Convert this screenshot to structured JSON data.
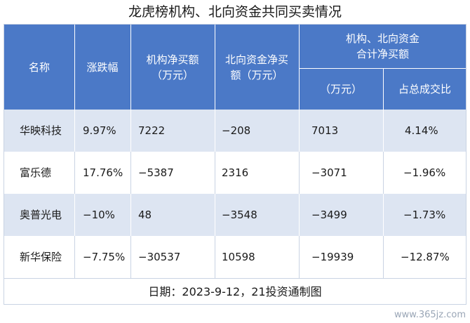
{
  "title": "龙虎榜机构、北向资金共同买卖情况",
  "header": {
    "name": "名称",
    "change": "涨跌幅",
    "inst_net": "机构净买额\n（万元）",
    "north_net": "北向资金净买\n额（万元）",
    "combined": "机构、北向资金\n合计净买额",
    "combined_unit": "（万元）",
    "share": "占总成交比"
  },
  "rows": [
    {
      "name": "华映科技",
      "change": "9.97%",
      "inst": "7222",
      "north": "−208",
      "total": "7013",
      "share": "4.14%"
    },
    {
      "name": "富乐德",
      "change": "17.76%",
      "inst": "−5387",
      "north": "2316",
      "total": "−3071",
      "share": "−1.96%"
    },
    {
      "name": "奥普光电",
      "change": "−10%",
      "inst": "48",
      "north": "−3548",
      "total": "−3499",
      "share": "−1.73%"
    },
    {
      "name": "新华保险",
      "change": "−7.75%",
      "inst": "−30537",
      "north": "10598",
      "total": "−19939",
      "share": "−12.87%"
    }
  ],
  "footer": "日期：2023-9-12，21投资通制图",
  "watermark": "www.365jz.com",
  "colors": {
    "header_bg": "#4b79c7",
    "alt_row": "#dde5f2",
    "text": "#1a1a1a"
  }
}
